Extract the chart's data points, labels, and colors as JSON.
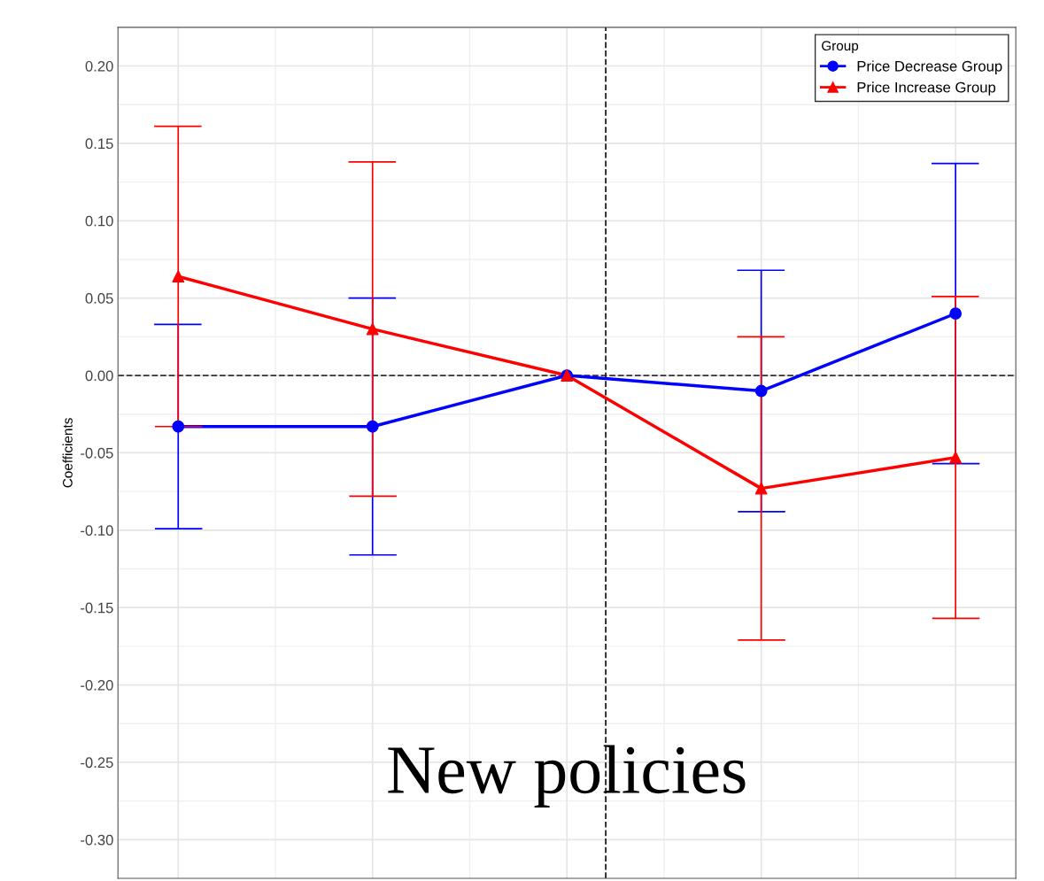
{
  "chart_data": {
    "type": "line",
    "ylabel": "Coefficients",
    "legend_title": "Group",
    "categories": [
      null,
      null,
      null,
      null,
      null
    ],
    "series": [
      {
        "name": "Price Decrease Group",
        "color": "#0000ff",
        "marker": "circle",
        "values": [
          -0.033,
          -0.033,
          0.0,
          -0.01,
          0.04
        ],
        "errors": [
          0.066,
          0.083,
          null,
          0.078,
          0.097
        ]
      },
      {
        "name": "Price Increase Group",
        "color": "#ff0000",
        "marker": "triangle",
        "values": [
          0.064,
          0.03,
          0.0,
          -0.073,
          -0.053
        ],
        "errors": [
          0.097,
          0.108,
          null,
          0.098,
          0.104
        ]
      }
    ],
    "ref_lines": [
      {
        "axis": "y",
        "value": 0,
        "line_style": "dashed",
        "color": "#333333"
      }
    ],
    "annotations": [
      "New policies"
    ],
    "ylim": [
      -0.325,
      0.225
    ],
    "yticks": [
      {
        "value": 0.2,
        "label": "0.20"
      },
      {
        "value": 0.15,
        "label": "0.15"
      },
      {
        "value": 0.1,
        "label": "0.10"
      },
      {
        "value": 0.05,
        "label": "0.05"
      },
      {
        "value": 0,
        "label": "0.00"
      },
      {
        "value": -0.05,
        "label": "-0.05"
      },
      {
        "value": -0.1,
        "label": "-0.10"
      },
      {
        "value": -0.15,
        "label": "-0.15"
      },
      {
        "value": -0.2,
        "label": "-0.20"
      },
      {
        "value": -0.25,
        "label": "-0.25"
      },
      {
        "value": -0.3,
        "label": "-0.30"
      }
    ],
    "tick_labels": "y",
    "grid": true,
    "legend": "top right",
    "line_style": "solid"
  }
}
